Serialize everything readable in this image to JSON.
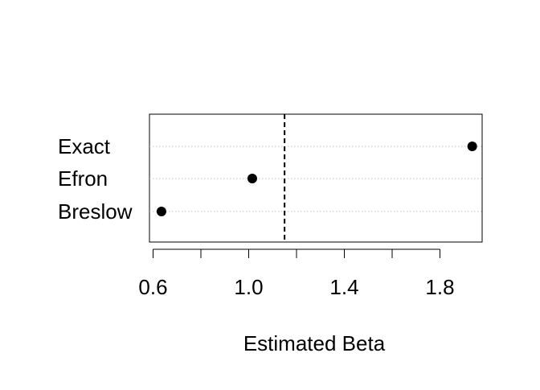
{
  "chart_data": {
    "type": "scatter",
    "title": "",
    "xlabel": "Estimated Beta",
    "ylabel": "",
    "categories": [
      "Breslow",
      "Efron",
      "Exact"
    ],
    "values": [
      0.635,
      1.015,
      1.935
    ],
    "xlim": [
      0.6,
      1.96
    ],
    "x_ticks": [
      0.6,
      0.8,
      1.0,
      1.2,
      1.4,
      1.6,
      1.8
    ],
    "x_tick_labels": [
      "0.6",
      "1.0",
      "1.4",
      "1.8"
    ],
    "x_labeled_ticks": [
      0.6,
      1.0,
      1.4,
      1.8
    ],
    "reference_line": 1.15,
    "grid": "horizontal dotted at each category",
    "legend": "none",
    "colors": {
      "point": "#000000",
      "grid": "#bebebe",
      "reference_line": "#000000"
    }
  }
}
